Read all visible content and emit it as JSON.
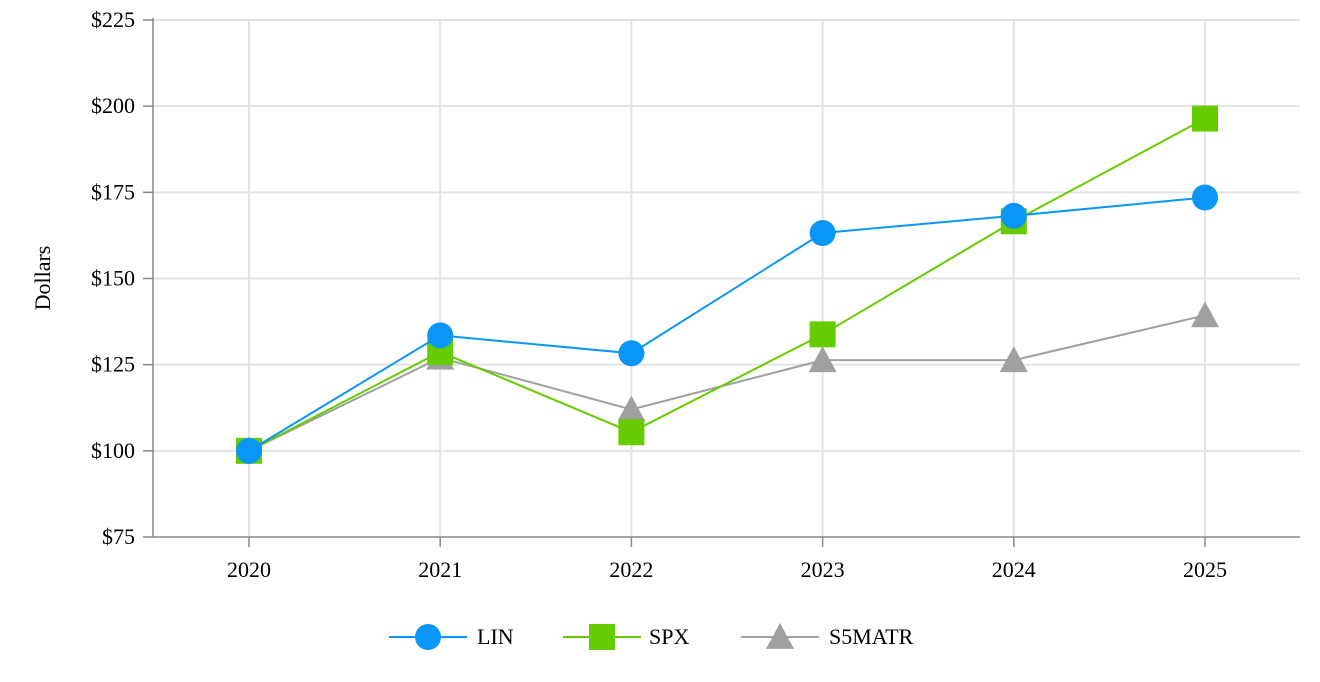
{
  "chart_data": {
    "type": "line",
    "title": "",
    "xlabel": "",
    "ylabel": "Dollars",
    "ylim": [
      75,
      225
    ],
    "yticks": [
      75,
      100,
      125,
      150,
      175,
      200,
      225
    ],
    "ytick_labels": [
      "$75",
      "$100",
      "$125",
      "$150",
      "$175",
      "$200",
      "$225"
    ],
    "categories": [
      "2020",
      "2021",
      "2022",
      "2023",
      "2024",
      "2025"
    ],
    "grid": true,
    "legend_position": "bottom-center",
    "series": [
      {
        "name": "LIN",
        "marker": "circle",
        "color": "#0A96F5",
        "values": [
          100,
          133.5,
          128.3,
          163.2,
          168.2,
          173.5
        ]
      },
      {
        "name": "SPX",
        "marker": "square",
        "color": "#66CC00",
        "values": [
          100,
          128.7,
          105.4,
          133.8,
          166.6,
          196.4
        ]
      },
      {
        "name": "S5MATR",
        "marker": "triangle",
        "color": "#A0A0A0",
        "values": [
          100,
          127.0,
          112.0,
          126.3,
          126.3,
          139.3
        ]
      }
    ]
  }
}
